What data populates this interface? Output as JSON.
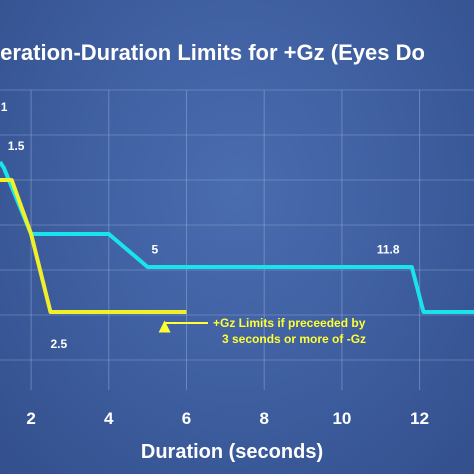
{
  "chart_data": {
    "type": "line",
    "title": "leration-Duration Limits for +Gz (Eyes Do",
    "xlabel": "Duration (seconds)",
    "ylabel": "",
    "x_ticks": [
      2,
      4,
      6,
      8,
      10,
      12
    ],
    "xlim": [
      1.2,
      13.4
    ],
    "ylim": [
      0,
      10
    ],
    "grid": true,
    "colors": {
      "background": "#3d5d9e",
      "grid": "#8fa6d3",
      "series_main": "#19e3ec",
      "series_preceded": "#f0f02a",
      "text": "#ffffff",
      "annotation": "#ffff33"
    },
    "series": [
      {
        "color": "#19e3ec",
        "points": [
          [
            1.2,
            7.6
          ],
          [
            1.3,
            7.4
          ],
          [
            2.0,
            5.2
          ],
          [
            4.0,
            5.2
          ],
          [
            5.0,
            4.1
          ],
          [
            11.6,
            4.1
          ],
          [
            11.8,
            4.1
          ],
          [
            12.1,
            2.6
          ],
          [
            13.4,
            2.6
          ]
        ]
      },
      {
        "color": "#f0f02a",
        "points": [
          [
            1.2,
            7.0
          ],
          [
            1.5,
            7.0
          ],
          [
            2.0,
            5.2
          ],
          [
            2.5,
            2.6
          ],
          [
            6.0,
            2.6
          ]
        ]
      }
    ],
    "point_labels": [
      {
        "text": "1",
        "x": 1.22,
        "y": 9.3
      },
      {
        "text": "1.5",
        "x": 1.4,
        "y": 8.0
      },
      {
        "text": "5",
        "x": 5.1,
        "y": 4.55
      },
      {
        "text": "11.8",
        "x": 10.9,
        "y": 4.55
      },
      {
        "text": "2.5",
        "x": 2.5,
        "y": 1.4
      }
    ],
    "annotation": {
      "lines": [
        "+Gz Limits if preceeded by",
        "3 seconds or more of -Gz"
      ],
      "arrow_target": [
        5.9,
        2.45
      ]
    }
  }
}
